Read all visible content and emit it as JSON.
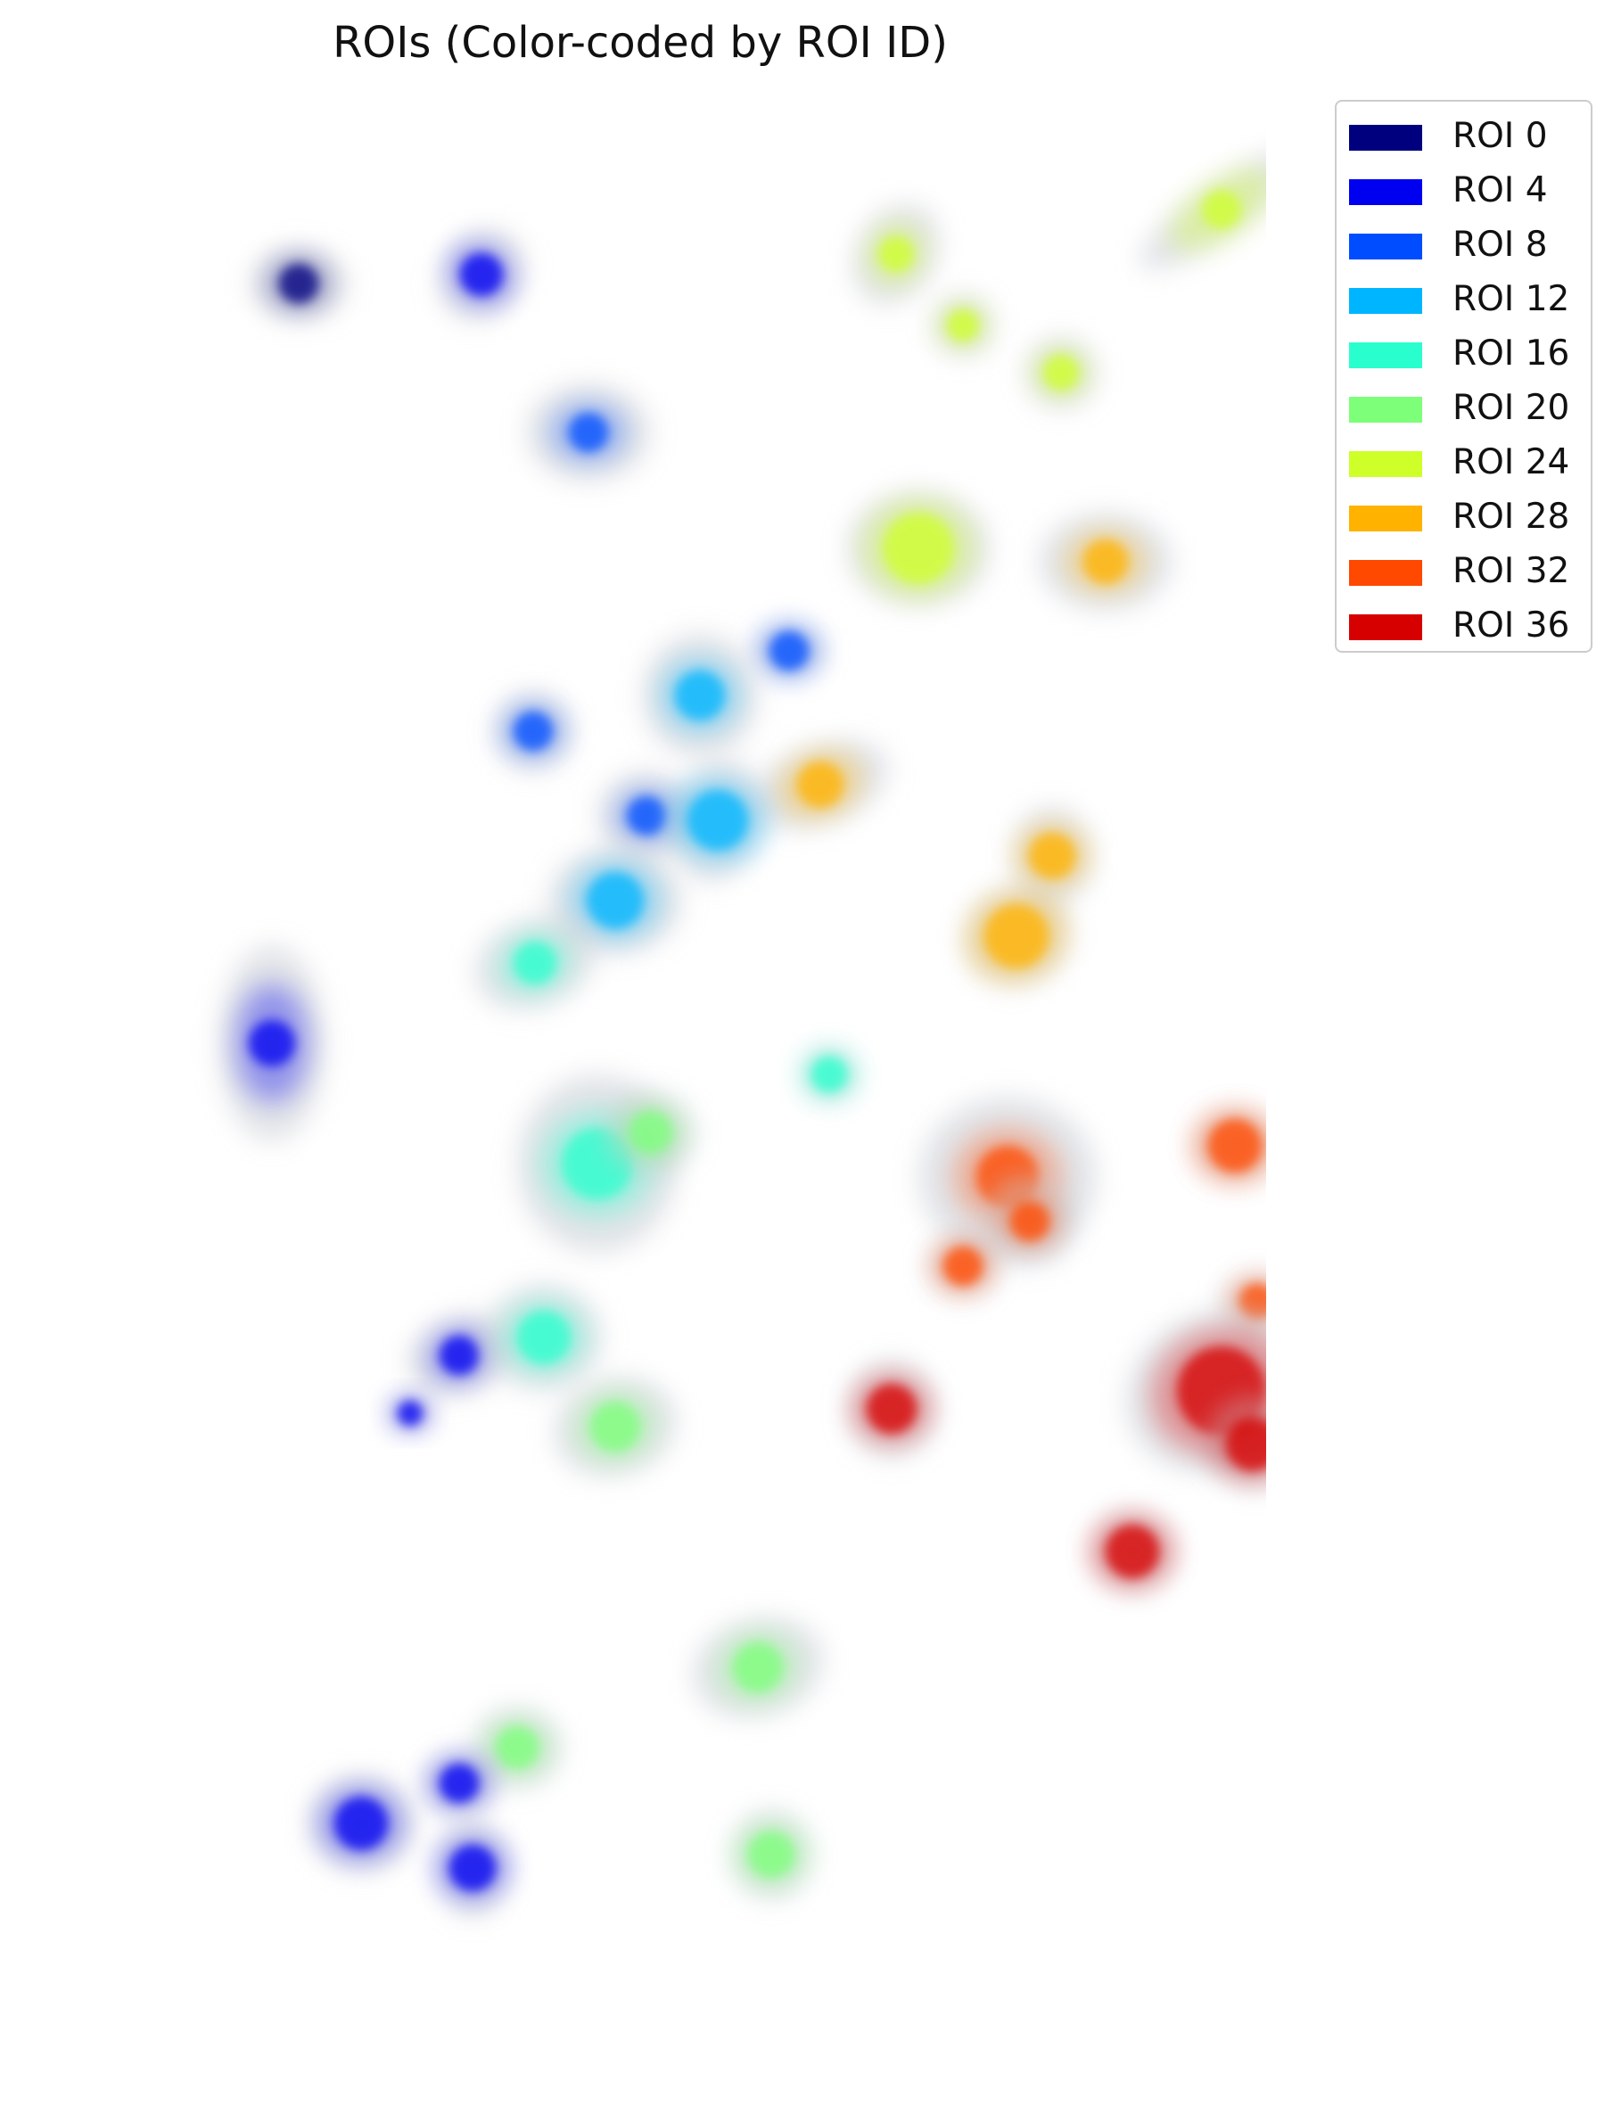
{
  "figure": {
    "title": "ROIs (Color-coded by ROI ID)"
  },
  "legend": {
    "items": [
      {
        "label": "ROI 0",
        "color": "#00007f"
      },
      {
        "label": "ROI 4",
        "color": "#0000f1"
      },
      {
        "label": "ROI 8",
        "color": "#004dff"
      },
      {
        "label": "ROI 12",
        "color": "#00b5ff"
      },
      {
        "label": "ROI 16",
        "color": "#29ffce"
      },
      {
        "label": "ROI 20",
        "color": "#7dff7a"
      },
      {
        "label": "ROI 24",
        "color": "#ceff29"
      },
      {
        "label": "ROI 28",
        "color": "#ffb200"
      },
      {
        "label": "ROI 32",
        "color": "#ff4800"
      },
      {
        "label": "ROI 36",
        "color": "#d60000"
      }
    ]
  },
  "image": {
    "description_icon": "fluorescence-cells-icon",
    "background": "#ffffff"
  }
}
